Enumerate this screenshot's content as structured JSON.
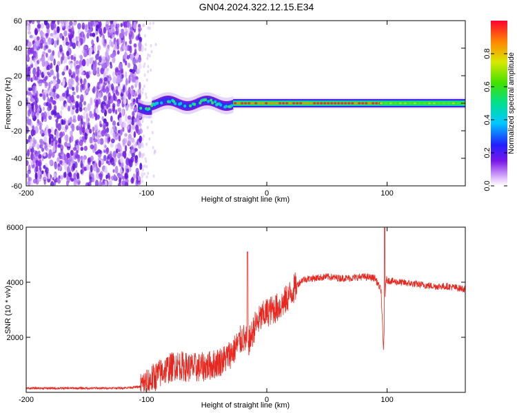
{
  "title": "GN04.2024.322.12.15.E34",
  "colors": {
    "signal_line": "#e8261e",
    "background": "#ffffff",
    "noise_purple": "#8a2be2"
  },
  "chart_data": [
    {
      "type": "heatmap",
      "xlabel": "Height of straight line (km)",
      "ylabel": "Frequency (Hz)",
      "xlim": [
        -200,
        165
      ],
      "ylim": [
        -60,
        60
      ],
      "x_ticks": [
        -200,
        -100,
        0,
        100
      ],
      "y_ticks": [
        -60,
        -40,
        -20,
        0,
        20,
        40,
        60
      ],
      "colorbar": {
        "label": "Normalized spectral amplitude",
        "range": [
          0,
          1
        ],
        "ticks": [
          "0.0",
          "0.2",
          "0.4",
          "0.6",
          "0.8"
        ],
        "colormap": "rainbow (purple to red)",
        "placement": "right"
      },
      "regions": [
        {
          "x_range": [
            -200,
            -107
          ],
          "description_value": "broadband noise",
          "amplitude": 0.1
        },
        {
          "x_range": [
            -107,
            -28
          ],
          "center_frequency": 0,
          "bandwidth": 16,
          "amplitude": 0.4
        },
        {
          "x_range": [
            -28,
            165
          ],
          "center_frequency": 0,
          "bandwidth": 10,
          "amplitude": 0.9
        }
      ],
      "grid": false
    },
    {
      "type": "line",
      "xlabel": "Height of straight line (km)",
      "ylabel": "SNR (10 * v/v)",
      "xlim": [
        -200,
        165
      ],
      "ylim": [
        0,
        6000
      ],
      "x_ticks": [
        -200,
        -100,
        0,
        100
      ],
      "y_ticks": [
        2000,
        4000,
        6000
      ],
      "series": [
        {
          "color": "#e8261e",
          "x": [
            -200,
            -180,
            -160,
            -140,
            -120,
            -105,
            -95,
            -85,
            -75,
            -65,
            -55,
            -45,
            -35,
            -28,
            -20,
            -16,
            -14,
            -10,
            -5,
            0,
            5,
            10,
            15,
            20,
            25,
            30,
            40,
            50,
            60,
            70,
            80,
            90,
            95,
            97,
            99,
            102,
            110,
            120,
            130,
            140,
            150,
            165
          ],
          "y": [
            150,
            150,
            150,
            150,
            160,
            200,
            500,
            800,
            1000,
            900,
            900,
            1000,
            1200,
            1500,
            2000,
            1800,
            1900,
            2400,
            2700,
            2900,
            3000,
            3100,
            3300,
            3600,
            3900,
            4100,
            4150,
            4200,
            4150,
            4150,
            4200,
            4150,
            3700,
            1500,
            4100,
            4050,
            4000,
            3950,
            3900,
            3850,
            3850,
            3750
          ]
        }
      ],
      "spikes": [
        {
          "x": -16,
          "y": 5100
        },
        {
          "x": 98,
          "y": 6000
        }
      ],
      "grid": false
    }
  ]
}
